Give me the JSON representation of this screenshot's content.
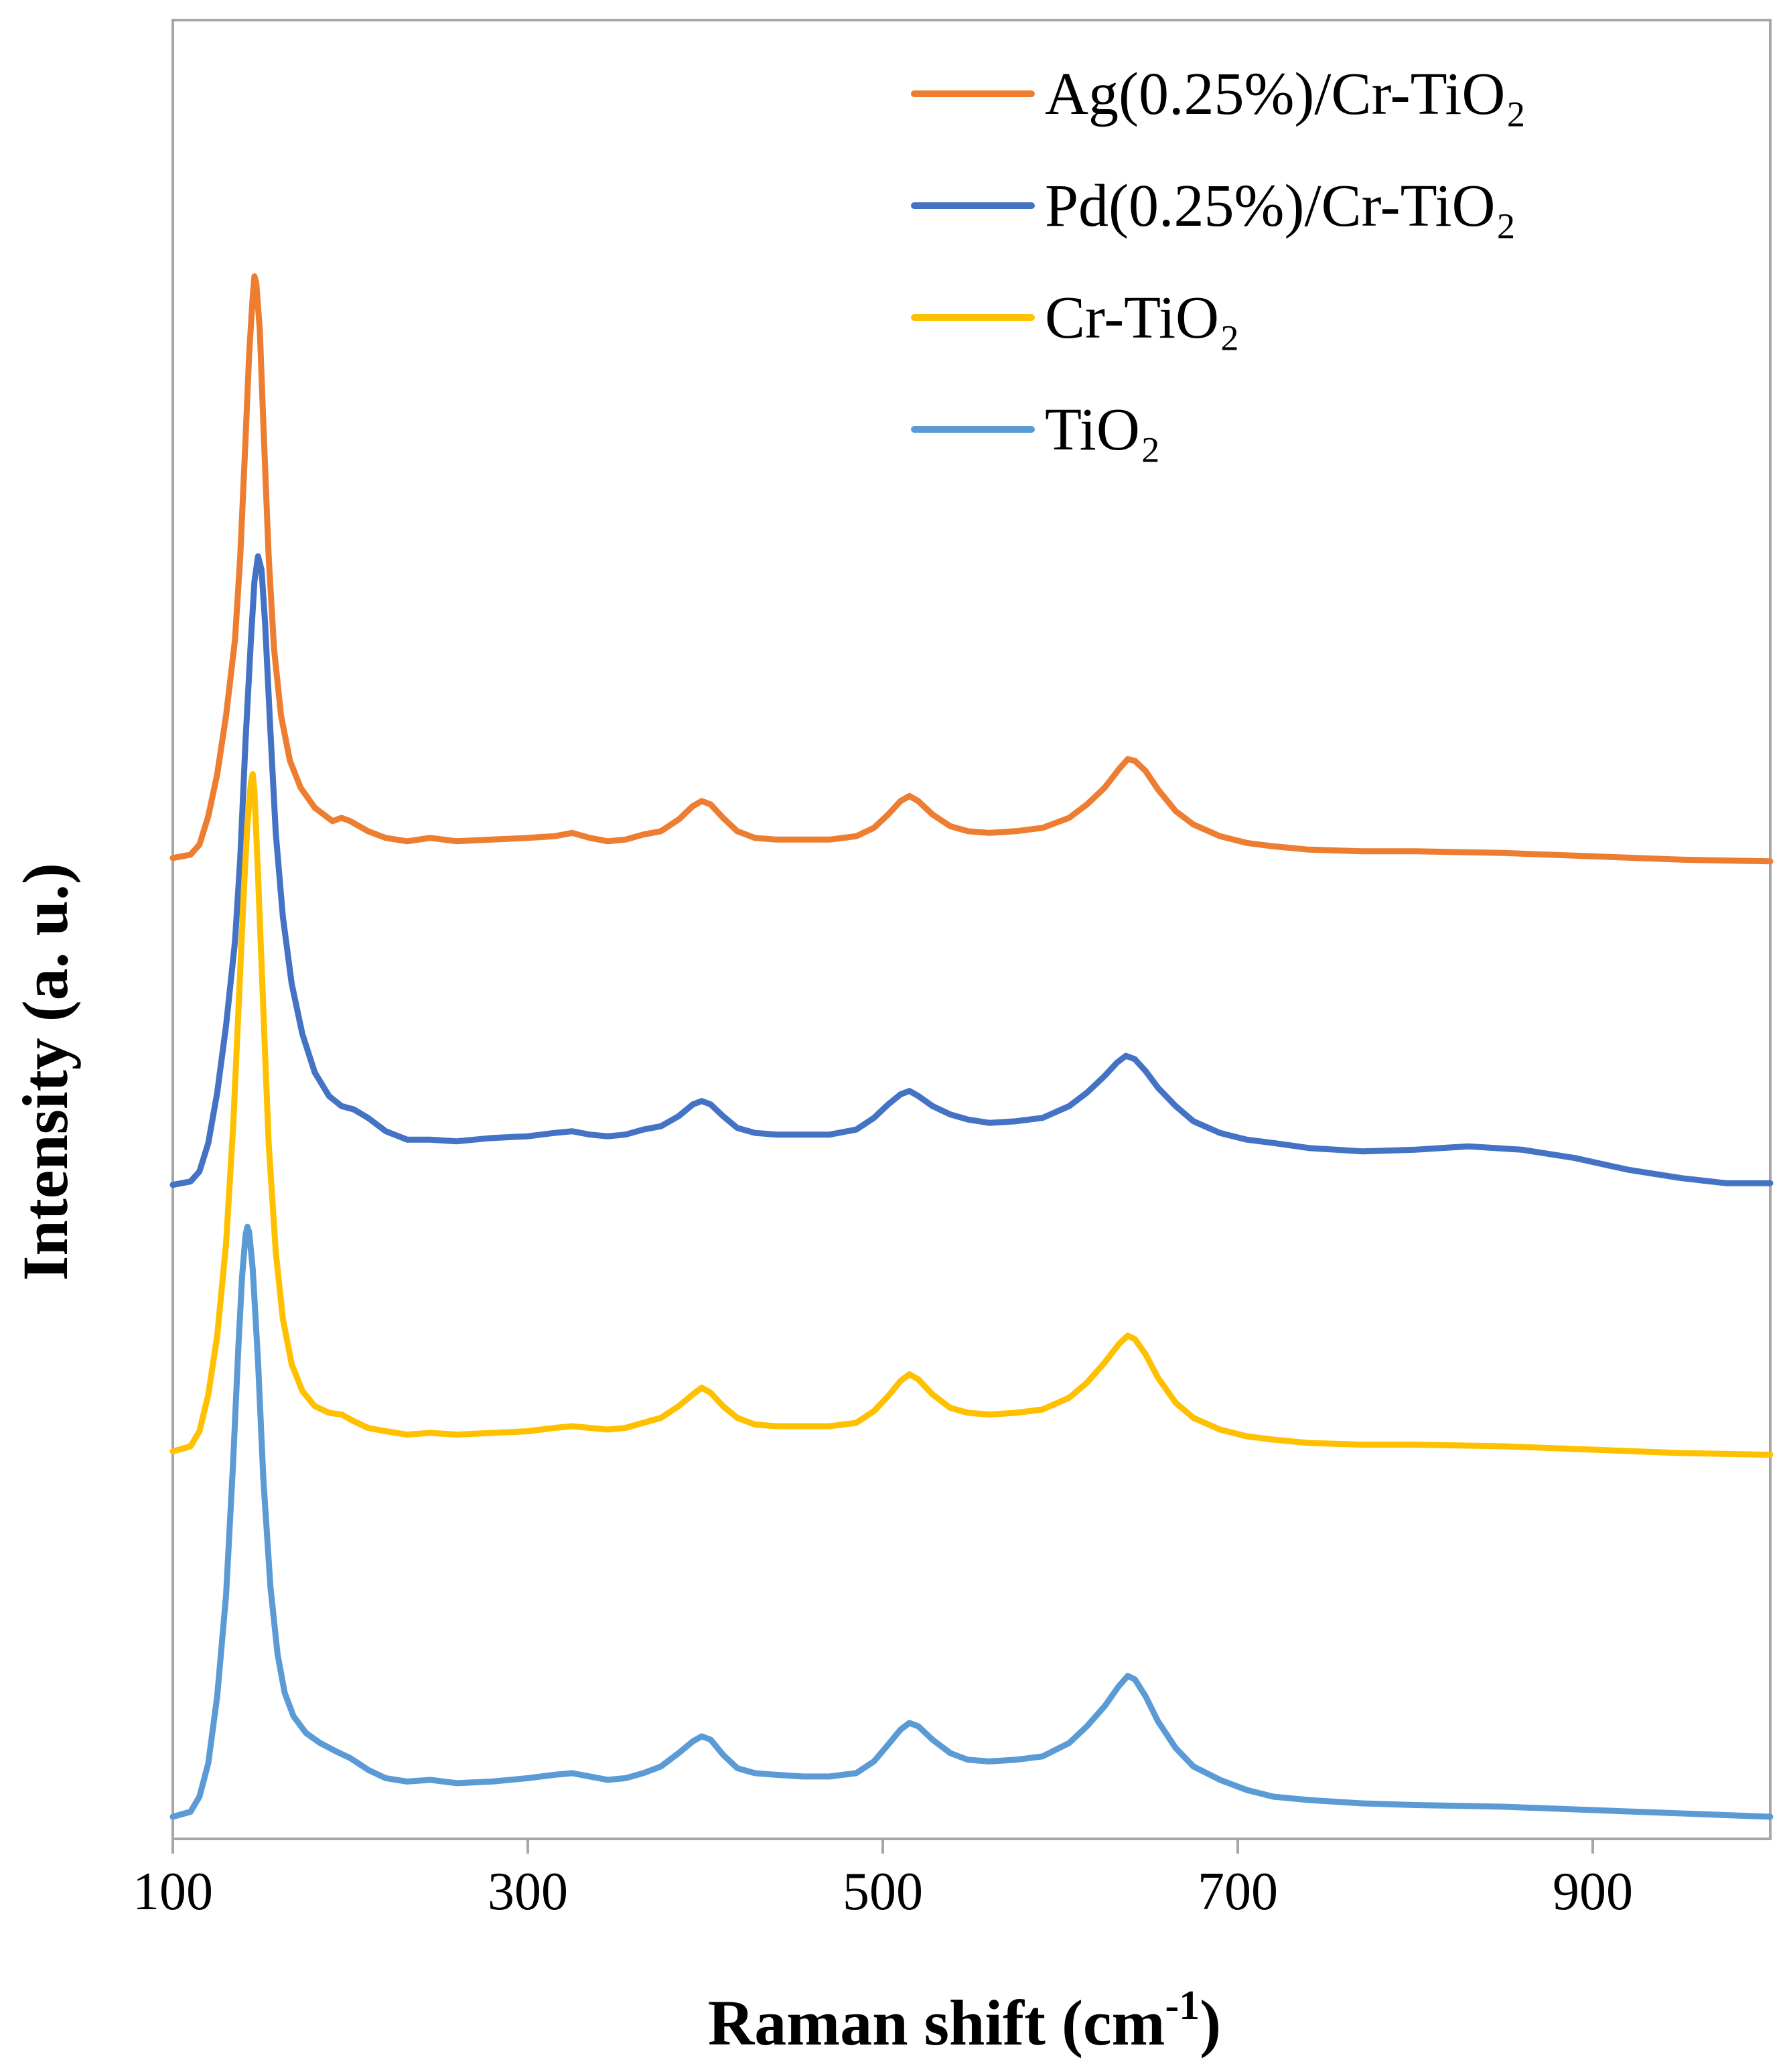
{
  "chart_data": {
    "type": "line",
    "title": "",
    "xlabel": "Raman shift (cm",
    "xlabel_sup": "-1",
    "xlabel_close": ")",
    "ylabel": "Intensity (a. u.)",
    "xlim": [
      100,
      1000
    ],
    "ylim": [
      0,
      100
    ],
    "xticks": [
      100,
      300,
      500,
      700,
      900
    ],
    "xtick_labels": [
      "100",
      "300",
      "500",
      "700",
      "900"
    ],
    "grid": false,
    "legend_position": "top-right",
    "series": [
      {
        "name": "Ag(0.25%)/Cr-TiO₂",
        "color": "#ED7D31",
        "points": [
          [
            100,
            58.0
          ],
          [
            110,
            58.2
          ],
          [
            115,
            58.8
          ],
          [
            120,
            60.5
          ],
          [
            125,
            63.0
          ],
          [
            130,
            66.5
          ],
          [
            135,
            71.0
          ],
          [
            138,
            76.0
          ],
          [
            141,
            83.0
          ],
          [
            143,
            88.0
          ],
          [
            145,
            91.5
          ],
          [
            146,
            92.7
          ],
          [
            147,
            92.3
          ],
          [
            149,
            89.5
          ],
          [
            151,
            84.0
          ],
          [
            154,
            76.0
          ],
          [
            157,
            70.5
          ],
          [
            161,
            66.5
          ],
          [
            166,
            63.8
          ],
          [
            172,
            62.2
          ],
          [
            180,
            61.0
          ],
          [
            190,
            60.2
          ],
          [
            195,
            60.4
          ],
          [
            200,
            60.2
          ],
          [
            210,
            59.6
          ],
          [
            220,
            59.2
          ],
          [
            232,
            59.0
          ],
          [
            245,
            59.2
          ],
          [
            260,
            59.0
          ],
          [
            280,
            59.1
          ],
          [
            300,
            59.2
          ],
          [
            315,
            59.3
          ],
          [
            325,
            59.5
          ],
          [
            335,
            59.2
          ],
          [
            345,
            59.0
          ],
          [
            355,
            59.1
          ],
          [
            365,
            59.4
          ],
          [
            375,
            59.6
          ],
          [
            385,
            60.3
          ],
          [
            393,
            61.1
          ],
          [
            398,
            61.4
          ],
          [
            403,
            61.2
          ],
          [
            410,
            60.4
          ],
          [
            418,
            59.6
          ],
          [
            428,
            59.2
          ],
          [
            440,
            59.1
          ],
          [
            455,
            59.1
          ],
          [
            470,
            59.1
          ],
          [
            485,
            59.3
          ],
          [
            495,
            59.8
          ],
          [
            503,
            60.6
          ],
          [
            510,
            61.4
          ],
          [
            515,
            61.7
          ],
          [
            520,
            61.4
          ],
          [
            528,
            60.6
          ],
          [
            538,
            59.9
          ],
          [
            548,
            59.6
          ],
          [
            560,
            59.5
          ],
          [
            575,
            59.6
          ],
          [
            590,
            59.8
          ],
          [
            605,
            60.4
          ],
          [
            615,
            61.2
          ],
          [
            625,
            62.2
          ],
          [
            633,
            63.3
          ],
          [
            638,
            63.9
          ],
          [
            642,
            63.8
          ],
          [
            648,
            63.2
          ],
          [
            655,
            62.1
          ],
          [
            665,
            60.8
          ],
          [
            675,
            60.0
          ],
          [
            690,
            59.3
          ],
          [
            705,
            58.9
          ],
          [
            720,
            58.7
          ],
          [
            740,
            58.5
          ],
          [
            770,
            58.4
          ],
          [
            800,
            58.4
          ],
          [
            850,
            58.3
          ],
          [
            900,
            58.1
          ],
          [
            950,
            57.9
          ],
          [
            1000,
            57.8
          ]
        ]
      },
      {
        "name": "Pd(0.25%)/Cr-TiO₂",
        "color": "#4472C4",
        "points": [
          [
            100,
            38.5
          ],
          [
            110,
            38.7
          ],
          [
            115,
            39.3
          ],
          [
            120,
            41.0
          ],
          [
            125,
            44.0
          ],
          [
            130,
            48.0
          ],
          [
            135,
            53.0
          ],
          [
            138,
            58.0
          ],
          [
            141,
            65.0
          ],
          [
            144,
            71.0
          ],
          [
            146,
            74.5
          ],
          [
            148,
            76.0
          ],
          [
            150,
            75.2
          ],
          [
            152,
            72.0
          ],
          [
            155,
            65.5
          ],
          [
            158,
            59.5
          ],
          [
            162,
            54.5
          ],
          [
            167,
            50.5
          ],
          [
            173,
            47.5
          ],
          [
            180,
            45.2
          ],
          [
            188,
            43.8
          ],
          [
            195,
            43.2
          ],
          [
            202,
            43.0
          ],
          [
            210,
            42.5
          ],
          [
            220,
            41.7
          ],
          [
            232,
            41.2
          ],
          [
            245,
            41.2
          ],
          [
            260,
            41.1
          ],
          [
            280,
            41.3
          ],
          [
            300,
            41.4
          ],
          [
            315,
            41.6
          ],
          [
            325,
            41.7
          ],
          [
            335,
            41.5
          ],
          [
            345,
            41.4
          ],
          [
            355,
            41.5
          ],
          [
            365,
            41.8
          ],
          [
            375,
            42.0
          ],
          [
            385,
            42.6
          ],
          [
            393,
            43.3
          ],
          [
            398,
            43.5
          ],
          [
            403,
            43.3
          ],
          [
            410,
            42.6
          ],
          [
            418,
            41.9
          ],
          [
            428,
            41.6
          ],
          [
            440,
            41.5
          ],
          [
            455,
            41.5
          ],
          [
            470,
            41.5
          ],
          [
            485,
            41.8
          ],
          [
            495,
            42.5
          ],
          [
            503,
            43.3
          ],
          [
            510,
            43.9
          ],
          [
            515,
            44.1
          ],
          [
            520,
            43.8
          ],
          [
            528,
            43.2
          ],
          [
            538,
            42.7
          ],
          [
            548,
            42.4
          ],
          [
            560,
            42.2
          ],
          [
            575,
            42.3
          ],
          [
            590,
            42.5
          ],
          [
            605,
            43.2
          ],
          [
            615,
            44.0
          ],
          [
            625,
            45.0
          ],
          [
            632,
            45.8
          ],
          [
            637,
            46.2
          ],
          [
            642,
            46.0
          ],
          [
            648,
            45.3
          ],
          [
            655,
            44.3
          ],
          [
            665,
            43.2
          ],
          [
            675,
            42.3
          ],
          [
            690,
            41.6
          ],
          [
            705,
            41.2
          ],
          [
            720,
            41.0
          ],
          [
            740,
            40.7
          ],
          [
            770,
            40.5
          ],
          [
            800,
            40.6
          ],
          [
            830,
            40.8
          ],
          [
            860,
            40.6
          ],
          [
            890,
            40.1
          ],
          [
            920,
            39.4
          ],
          [
            950,
            38.9
          ],
          [
            975,
            38.6
          ],
          [
            1000,
            38.6
          ]
        ]
      },
      {
        "name": "Cr-TiO₂",
        "color": "#FFC000",
        "points": [
          [
            100,
            22.6
          ],
          [
            110,
            22.9
          ],
          [
            115,
            23.8
          ],
          [
            120,
            26.0
          ],
          [
            125,
            29.5
          ],
          [
            130,
            35.0
          ],
          [
            134,
            42.0
          ],
          [
            137,
            49.0
          ],
          [
            140,
            56.0
          ],
          [
            142,
            60.0
          ],
          [
            144,
            62.5
          ],
          [
            145,
            63.0
          ],
          [
            146,
            62.0
          ],
          [
            148,
            57.0
          ],
          [
            151,
            49.0
          ],
          [
            154,
            41.0
          ],
          [
            158,
            34.5
          ],
          [
            162,
            30.5
          ],
          [
            167,
            27.8
          ],
          [
            173,
            26.2
          ],
          [
            180,
            25.3
          ],
          [
            188,
            24.9
          ],
          [
            195,
            24.8
          ],
          [
            202,
            24.4
          ],
          [
            210,
            24.0
          ],
          [
            220,
            23.8
          ],
          [
            232,
            23.6
          ],
          [
            245,
            23.7
          ],
          [
            260,
            23.6
          ],
          [
            280,
            23.7
          ],
          [
            300,
            23.8
          ],
          [
            315,
            24.0
          ],
          [
            325,
            24.1
          ],
          [
            335,
            24.0
          ],
          [
            345,
            23.9
          ],
          [
            355,
            24.0
          ],
          [
            365,
            24.3
          ],
          [
            375,
            24.6
          ],
          [
            385,
            25.3
          ],
          [
            393,
            26.0
          ],
          [
            398,
            26.4
          ],
          [
            403,
            26.1
          ],
          [
            410,
            25.3
          ],
          [
            418,
            24.6
          ],
          [
            428,
            24.2
          ],
          [
            440,
            24.1
          ],
          [
            455,
            24.1
          ],
          [
            470,
            24.1
          ],
          [
            485,
            24.3
          ],
          [
            495,
            25.0
          ],
          [
            503,
            25.9
          ],
          [
            510,
            26.8
          ],
          [
            515,
            27.2
          ],
          [
            520,
            26.9
          ],
          [
            528,
            26.0
          ],
          [
            538,
            25.2
          ],
          [
            548,
            24.9
          ],
          [
            560,
            24.8
          ],
          [
            575,
            24.9
          ],
          [
            590,
            25.1
          ],
          [
            605,
            25.8
          ],
          [
            615,
            26.7
          ],
          [
            625,
            27.9
          ],
          [
            633,
            29.0
          ],
          [
            638,
            29.5
          ],
          [
            642,
            29.3
          ],
          [
            648,
            28.4
          ],
          [
            655,
            27.0
          ],
          [
            665,
            25.5
          ],
          [
            675,
            24.6
          ],
          [
            690,
            23.9
          ],
          [
            705,
            23.5
          ],
          [
            720,
            23.3
          ],
          [
            740,
            23.1
          ],
          [
            770,
            23.0
          ],
          [
            800,
            23.0
          ],
          [
            850,
            22.9
          ],
          [
            900,
            22.7
          ],
          [
            950,
            22.5
          ],
          [
            1000,
            22.4
          ]
        ]
      },
      {
        "name": "TiO₂",
        "color": "#5B9BD5",
        "points": [
          [
            100,
            0.8
          ],
          [
            110,
            1.1
          ],
          [
            115,
            2.0
          ],
          [
            120,
            4.0
          ],
          [
            125,
            8.0
          ],
          [
            130,
            14.0
          ],
          [
            134,
            22.0
          ],
          [
            137,
            29.0
          ],
          [
            139,
            33.0
          ],
          [
            141,
            35.5
          ],
          [
            142,
            36.0
          ],
          [
            143,
            35.7
          ],
          [
            145,
            33.5
          ],
          [
            148,
            28.0
          ],
          [
            151,
            21.0
          ],
          [
            155,
            14.5
          ],
          [
            159,
            10.5
          ],
          [
            163,
            8.2
          ],
          [
            168,
            6.8
          ],
          [
            175,
            5.8
          ],
          [
            183,
            5.2
          ],
          [
            192,
            4.7
          ],
          [
            200,
            4.3
          ],
          [
            210,
            3.6
          ],
          [
            220,
            3.1
          ],
          [
            232,
            2.9
          ],
          [
            245,
            3.0
          ],
          [
            260,
            2.8
          ],
          [
            280,
            2.9
          ],
          [
            300,
            3.1
          ],
          [
            315,
            3.3
          ],
          [
            325,
            3.4
          ],
          [
            335,
            3.2
          ],
          [
            345,
            3.0
          ],
          [
            355,
            3.1
          ],
          [
            365,
            3.4
          ],
          [
            375,
            3.8
          ],
          [
            385,
            4.6
          ],
          [
            393,
            5.3
          ],
          [
            398,
            5.6
          ],
          [
            403,
            5.4
          ],
          [
            410,
            4.5
          ],
          [
            418,
            3.7
          ],
          [
            428,
            3.4
          ],
          [
            440,
            3.3
          ],
          [
            455,
            3.2
          ],
          [
            470,
            3.2
          ],
          [
            485,
            3.4
          ],
          [
            495,
            4.1
          ],
          [
            503,
            5.1
          ],
          [
            510,
            6.0
          ],
          [
            515,
            6.4
          ],
          [
            520,
            6.2
          ],
          [
            528,
            5.4
          ],
          [
            538,
            4.6
          ],
          [
            548,
            4.2
          ],
          [
            560,
            4.1
          ],
          [
            575,
            4.2
          ],
          [
            590,
            4.4
          ],
          [
            605,
            5.2
          ],
          [
            615,
            6.2
          ],
          [
            625,
            7.4
          ],
          [
            633,
            8.6
          ],
          [
            638,
            9.2
          ],
          [
            642,
            9.0
          ],
          [
            648,
            8.0
          ],
          [
            655,
            6.5
          ],
          [
            665,
            4.9
          ],
          [
            675,
            3.8
          ],
          [
            690,
            3.0
          ],
          [
            705,
            2.4
          ],
          [
            720,
            2.0
          ],
          [
            740,
            1.8
          ],
          [
            770,
            1.6
          ],
          [
            800,
            1.5
          ],
          [
            850,
            1.4
          ],
          [
            900,
            1.2
          ],
          [
            950,
            1.0
          ],
          [
            1000,
            0.8
          ]
        ]
      }
    ]
  }
}
